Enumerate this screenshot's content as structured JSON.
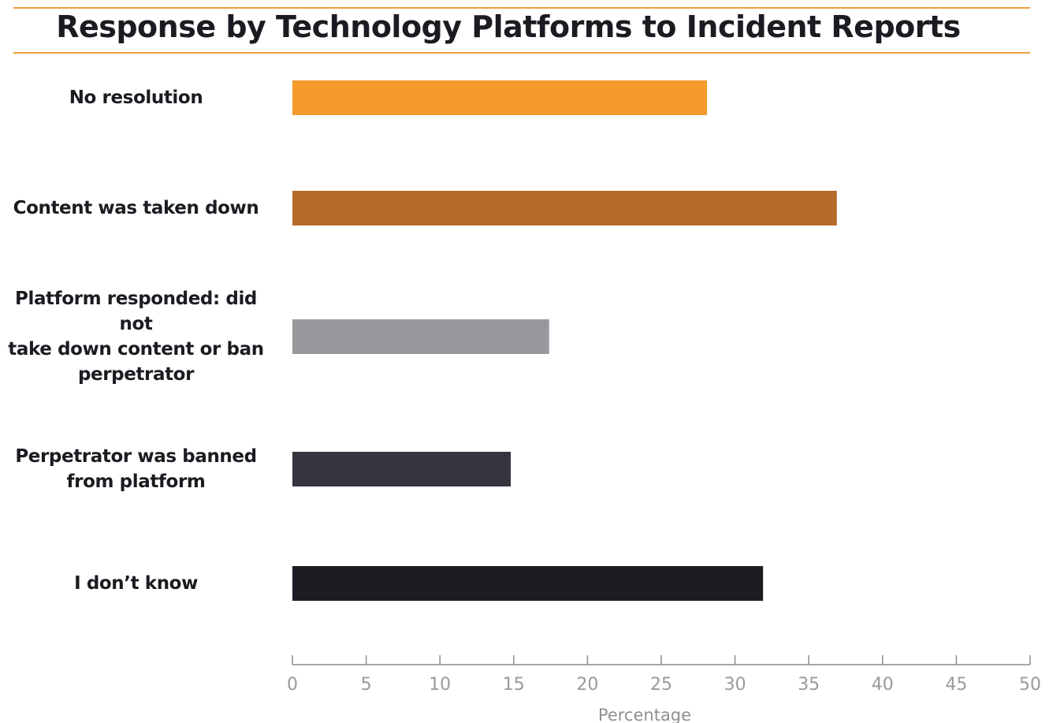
{
  "chart_data": {
    "type": "bar",
    "orientation": "horizontal",
    "title": "Response by Technology Platforms to Incident Reports",
    "xlabel": "Percentage",
    "ylabel": "",
    "xlim": [
      0,
      50
    ],
    "ticks": [
      0,
      5,
      10,
      15,
      20,
      25,
      30,
      35,
      40,
      45,
      50
    ],
    "grid": false,
    "categories": [
      "No resolution",
      "Content was taken down",
      "Platform responded: did not\ntake down content or ban\nperpetrator",
      "Perpetrator was banned\nfrom platform",
      "I don’t know"
    ],
    "values": [
      28.1,
      36.9,
      17.4,
      14.8,
      31.9
    ],
    "colors": [
      "#f49a2a",
      "#b46a28",
      "#97989b",
      "#35343f",
      "#1d1c22"
    ]
  }
}
